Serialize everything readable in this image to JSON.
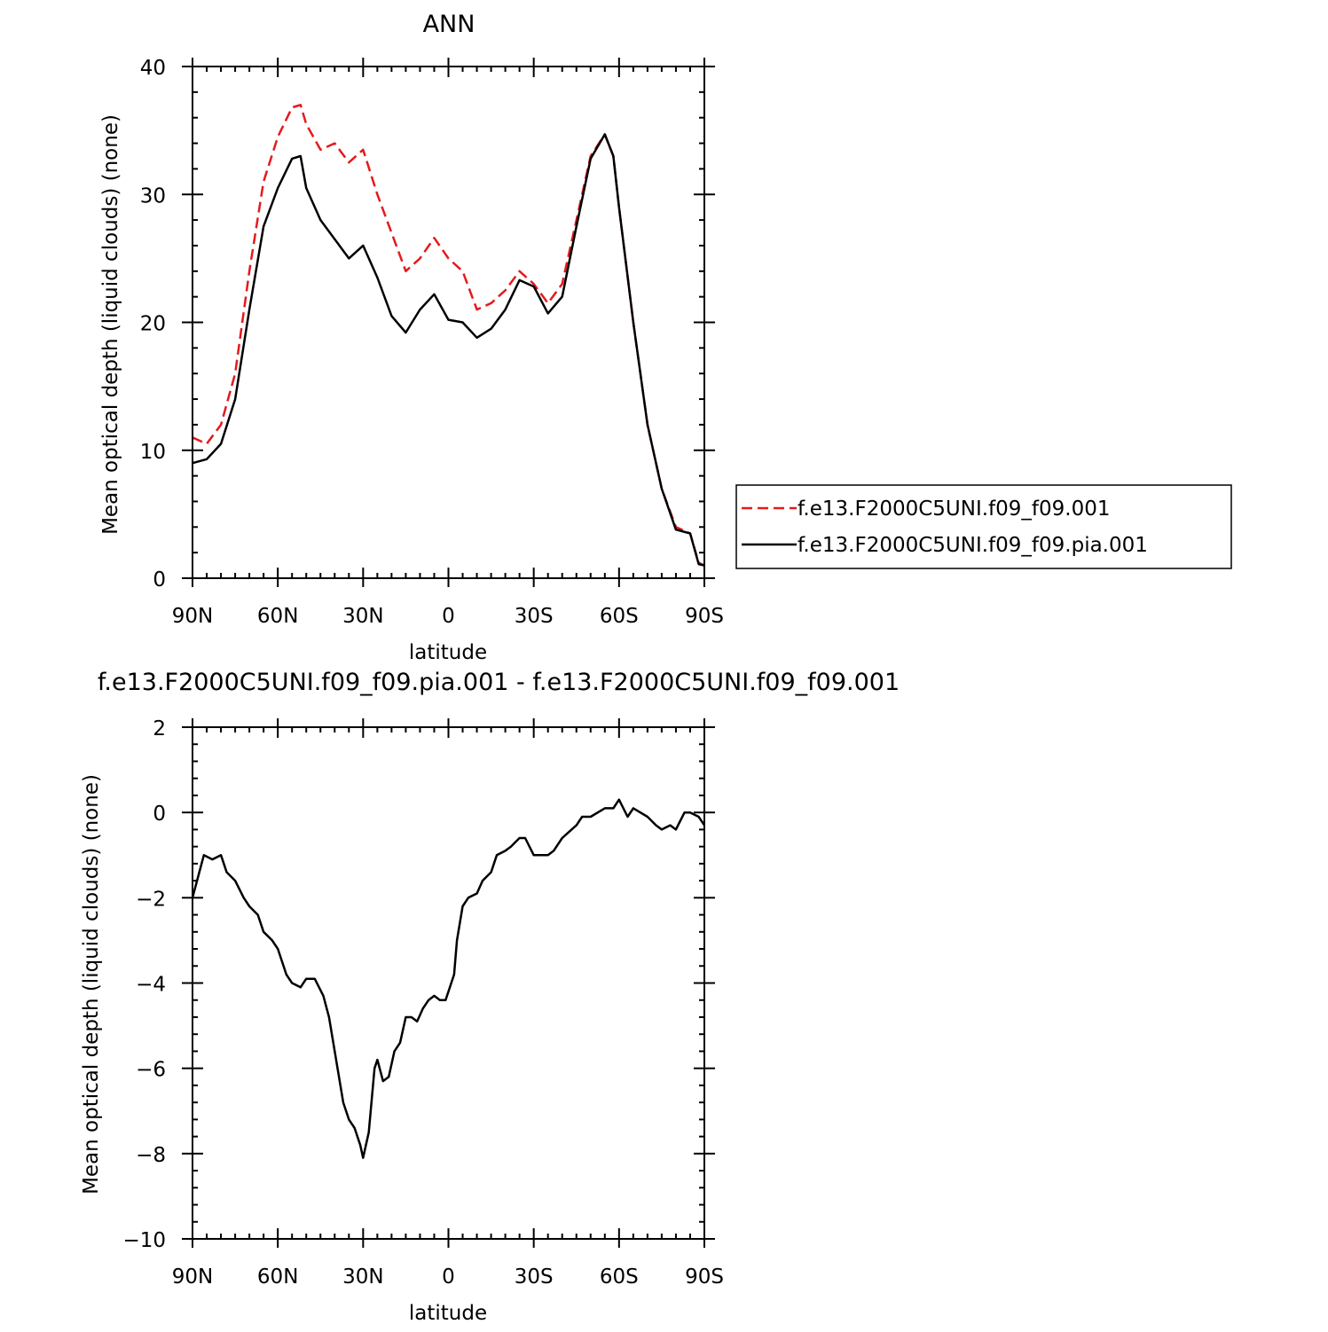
{
  "chart_data": [
    {
      "type": "line",
      "title": "ANN",
      "xlabel": "latitude",
      "ylabel": "Mean optical depth (liquid clouds) (none)",
      "xlim": [
        90,
        -90
      ],
      "ylim": [
        0,
        40
      ],
      "x_ticks": [
        90,
        60,
        30,
        0,
        -30,
        -60,
        -90
      ],
      "x_tick_labels": [
        "90N",
        "60N",
        "30N",
        "0",
        "30S",
        "60S",
        "90S"
      ],
      "y_ticks": [
        0,
        10,
        20,
        30,
        40
      ],
      "y_tick_labels": [
        "0",
        "10",
        "20",
        "30",
        "40"
      ],
      "legend_position": "right",
      "x": [
        90,
        85,
        80,
        75,
        70,
        65,
        60,
        55,
        52,
        50,
        45,
        40,
        35,
        30,
        25,
        20,
        15,
        10,
        5,
        0,
        -5,
        -10,
        -15,
        -20,
        -25,
        -30,
        -35,
        -40,
        -45,
        -50,
        -55,
        -58,
        -60,
        -65,
        -70,
        -75,
        -80,
        -85,
        -88,
        -90
      ],
      "series": [
        {
          "name": "f.e13.F2000C5UNI.f09_f09.001",
          "color": "#e41a1c",
          "dash": "dashed",
          "values": [
            11.0,
            10.5,
            12.0,
            16.0,
            24.0,
            31.0,
            34.5,
            36.8,
            37.0,
            35.5,
            33.5,
            34.0,
            32.5,
            33.5,
            30.0,
            27.0,
            24.0,
            25.0,
            26.6,
            25.0,
            24.0,
            21.0,
            21.5,
            22.5,
            24.0,
            23.0,
            21.5,
            23.0,
            28.0,
            33.0,
            34.7,
            33.0,
            29.0,
            20.0,
            12.0,
            7.0,
            4.0,
            3.5,
            1.2,
            1.0
          ]
        },
        {
          "name": "f.e13.F2000C5UNI.f09_f09.pia.001",
          "color": "#000000",
          "dash": "solid",
          "values": [
            9.0,
            9.3,
            10.5,
            14.0,
            21.0,
            27.5,
            30.5,
            32.8,
            33.0,
            30.5,
            28.0,
            26.5,
            25.0,
            26.0,
            23.5,
            20.5,
            19.2,
            21.0,
            22.2,
            20.2,
            20.0,
            18.8,
            19.5,
            21.0,
            23.3,
            22.8,
            20.7,
            22.0,
            27.5,
            32.8,
            34.7,
            33.0,
            29.0,
            20.0,
            12.0,
            7.0,
            3.8,
            3.5,
            1.1,
            1.0
          ]
        }
      ]
    },
    {
      "type": "line",
      "title": "f.e13.F2000C5UNI.f09_f09.pia.001 - f.e13.F2000C5UNI.f09_f09.001",
      "xlabel": "latitude",
      "ylabel": "Mean optical depth (liquid clouds) (none)",
      "xlim": [
        90,
        -90
      ],
      "ylim": [
        -10,
        2
      ],
      "x_ticks": [
        90,
        60,
        30,
        0,
        -30,
        -60,
        -90
      ],
      "x_tick_labels": [
        "90N",
        "60N",
        "30N",
        "0",
        "30S",
        "60S",
        "90S"
      ],
      "y_ticks": [
        -10,
        -8,
        -6,
        -4,
        -2,
        0,
        2
      ],
      "y_tick_labels": [
        "−10",
        "−8",
        "−6",
        "−4",
        "−2",
        "0",
        "2"
      ],
      "x": [
        90,
        88,
        86,
        83,
        80,
        78,
        75,
        72,
        70,
        67,
        65,
        62,
        60,
        57,
        55,
        52,
        50,
        47,
        44,
        42,
        40,
        37,
        35,
        33,
        31,
        30,
        28,
        26,
        25,
        23,
        21,
        19,
        17,
        15,
        13,
        11,
        9,
        7,
        5,
        3,
        1,
        0,
        -2,
        -3,
        -5,
        -7,
        -10,
        -12,
        -15,
        -17,
        -20,
        -22,
        -25,
        -27,
        -30,
        -32,
        -35,
        -37,
        -40,
        -45,
        -47,
        -50,
        -55,
        -58,
        -60,
        -63,
        -65,
        -70,
        -73,
        -75,
        -78,
        -80,
        -83,
        -85,
        -88,
        -90
      ],
      "series": [
        {
          "color": "#000000",
          "values": [
            -2.0,
            -1.5,
            -1.0,
            -1.1,
            -1.0,
            -1.4,
            -1.6,
            -2.0,
            -2.2,
            -2.4,
            -2.8,
            -3.0,
            -3.2,
            -3.8,
            -4.0,
            -4.1,
            -3.9,
            -3.9,
            -4.3,
            -4.8,
            -5.6,
            -6.8,
            -7.2,
            -7.4,
            -7.8,
            -8.1,
            -7.5,
            -6.0,
            -5.8,
            -6.3,
            -6.2,
            -5.6,
            -5.4,
            -4.8,
            -4.8,
            -4.9,
            -4.6,
            -4.4,
            -4.3,
            -4.4,
            -4.4,
            -4.2,
            -3.8,
            -3.0,
            -2.2,
            -2.0,
            -1.9,
            -1.6,
            -1.4,
            -1.0,
            -0.9,
            -0.8,
            -0.6,
            -0.6,
            -1.0,
            -1.0,
            -1.0,
            -0.9,
            -0.6,
            -0.3,
            -0.1,
            -0.1,
            0.1,
            0.1,
            0.3,
            -0.1,
            0.1,
            -0.1,
            -0.3,
            -0.4,
            -0.3,
            -0.4,
            0.0,
            0.0,
            -0.1,
            -0.3
          ]
        }
      ]
    }
  ]
}
